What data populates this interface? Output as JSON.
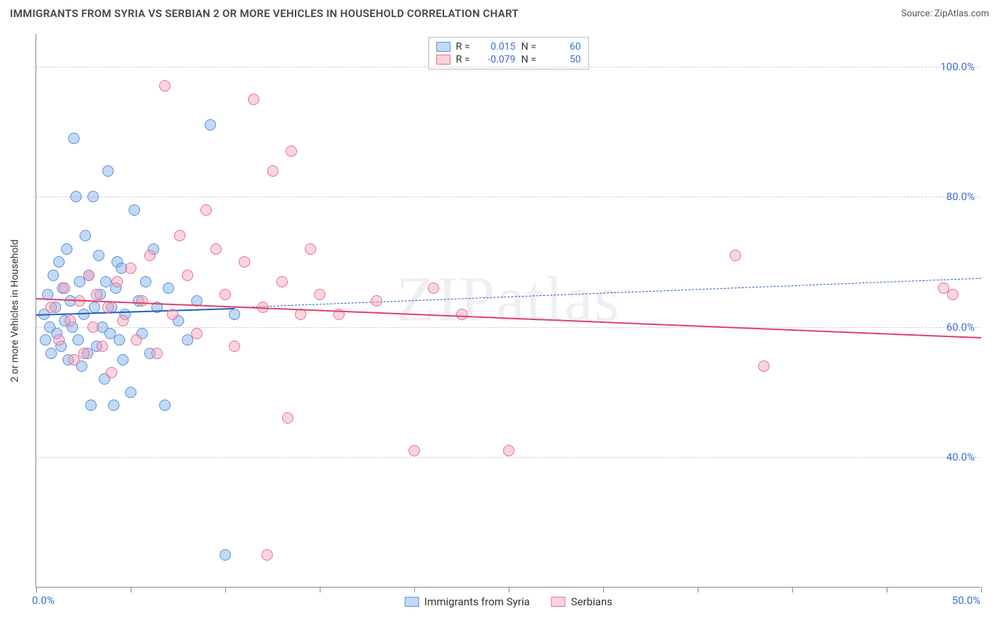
{
  "title": "IMMIGRANTS FROM SYRIA VS SERBIAN 2 OR MORE VEHICLES IN HOUSEHOLD CORRELATION CHART",
  "source": "Source: ZipAtlas.com",
  "watermark": "ZIPatlas",
  "chart": {
    "type": "scatter",
    "background_color": "#ffffff",
    "grid_color": "#d0d0d0",
    "axis_color": "#888888",
    "xlim": [
      0,
      50
    ],
    "ylim": [
      20,
      105
    ],
    "x_min_label": "0.0%",
    "x_max_label": "50.0%",
    "x_ticks": [
      0,
      5,
      10,
      15,
      20,
      25,
      30,
      35,
      40,
      45,
      50
    ],
    "y_gridlines": [
      40,
      60,
      80,
      100
    ],
    "y_tick_labels": [
      "40.0%",
      "60.0%",
      "80.0%",
      "100.0%"
    ],
    "y_axis_label": "2 or more Vehicles in Household",
    "label_color": "#3b6fd6",
    "label_fontsize": 15,
    "point_radius": 8,
    "point_opacity": 0.65,
    "series": [
      {
        "name": "Immigrants from Syria",
        "color_fill": "rgba(120,170,235,0.45)",
        "color_stroke": "#5a8fd6",
        "trend_solid": {
          "x1": 0,
          "y1": 62,
          "x2": 10.5,
          "y2": 63,
          "color": "#1f5fbf",
          "width": 2.5
        },
        "trend_dashed": {
          "x1": 10.5,
          "y1": 63,
          "x2": 50,
          "y2": 67.5,
          "color": "#1f5fbf",
          "width": 1.2
        },
        "R": "0.015",
        "N": "60",
        "points": [
          [
            0.4,
            62
          ],
          [
            0.5,
            58
          ],
          [
            0.6,
            65
          ],
          [
            0.7,
            60
          ],
          [
            0.8,
            56
          ],
          [
            0.9,
            68
          ],
          [
            1.0,
            63
          ],
          [
            1.1,
            59
          ],
          [
            1.2,
            70
          ],
          [
            1.3,
            57
          ],
          [
            1.4,
            66
          ],
          [
            1.5,
            61
          ],
          [
            1.6,
            72
          ],
          [
            1.7,
            55
          ],
          [
            1.8,
            64
          ],
          [
            1.9,
            60
          ],
          [
            2.0,
            89
          ],
          [
            2.1,
            80
          ],
          [
            2.2,
            58
          ],
          [
            2.3,
            67
          ],
          [
            2.4,
            54
          ],
          [
            2.5,
            62
          ],
          [
            2.6,
            74
          ],
          [
            2.7,
            56
          ],
          [
            2.8,
            68
          ],
          [
            2.9,
            48
          ],
          [
            3.0,
            80
          ],
          [
            3.1,
            63
          ],
          [
            3.2,
            57
          ],
          [
            3.3,
            71
          ],
          [
            3.4,
            65
          ],
          [
            3.5,
            60
          ],
          [
            3.6,
            52
          ],
          [
            3.7,
            67
          ],
          [
            3.8,
            84
          ],
          [
            3.9,
            59
          ],
          [
            4.0,
            63
          ],
          [
            4.1,
            48
          ],
          [
            4.2,
            66
          ],
          [
            4.3,
            70
          ],
          [
            4.4,
            58
          ],
          [
            4.5,
            69
          ],
          [
            4.6,
            55
          ],
          [
            4.7,
            62
          ],
          [
            5.0,
            50
          ],
          [
            5.2,
            78
          ],
          [
            5.4,
            64
          ],
          [
            5.6,
            59
          ],
          [
            5.8,
            67
          ],
          [
            6.0,
            56
          ],
          [
            6.2,
            72
          ],
          [
            6.4,
            63
          ],
          [
            6.8,
            48
          ],
          [
            7.0,
            66
          ],
          [
            7.5,
            61
          ],
          [
            8.0,
            58
          ],
          [
            8.5,
            64
          ],
          [
            9.2,
            91
          ],
          [
            10.0,
            25
          ],
          [
            10.5,
            62
          ]
        ]
      },
      {
        "name": "Serbians",
        "color_fill": "rgba(245,160,185,0.45)",
        "color_stroke": "#e66f94",
        "trend_solid": {
          "x1": 0,
          "y1": 64.5,
          "x2": 50,
          "y2": 58.5,
          "color": "#e33d6f",
          "width": 2.5
        },
        "trend_dashed": null,
        "R": "-0.079",
        "N": "50",
        "points": [
          [
            0.8,
            63
          ],
          [
            1.2,
            58
          ],
          [
            1.5,
            66
          ],
          [
            1.8,
            61
          ],
          [
            2.0,
            55
          ],
          [
            2.3,
            64
          ],
          [
            2.5,
            56
          ],
          [
            2.8,
            68
          ],
          [
            3.0,
            60
          ],
          [
            3.2,
            65
          ],
          [
            3.5,
            57
          ],
          [
            3.8,
            63
          ],
          [
            4.0,
            53
          ],
          [
            4.3,
            67
          ],
          [
            4.6,
            61
          ],
          [
            5.0,
            69
          ],
          [
            5.3,
            58
          ],
          [
            5.6,
            64
          ],
          [
            6.0,
            71
          ],
          [
            6.4,
            56
          ],
          [
            6.8,
            97
          ],
          [
            7.2,
            62
          ],
          [
            7.6,
            74
          ],
          [
            8.0,
            68
          ],
          [
            8.5,
            59
          ],
          [
            9.0,
            78
          ],
          [
            9.5,
            72
          ],
          [
            10.0,
            65
          ],
          [
            10.5,
            57
          ],
          [
            11.0,
            70
          ],
          [
            11.5,
            95
          ],
          [
            12.0,
            63
          ],
          [
            12.2,
            25
          ],
          [
            12.5,
            84
          ],
          [
            13.0,
            67
          ],
          [
            13.3,
            46
          ],
          [
            13.5,
            87
          ],
          [
            14.0,
            62
          ],
          [
            14.5,
            72
          ],
          [
            15.0,
            65
          ],
          [
            16.0,
            62
          ],
          [
            18.0,
            64
          ],
          [
            20.0,
            41
          ],
          [
            21.0,
            66
          ],
          [
            22.5,
            62
          ],
          [
            25.0,
            41
          ],
          [
            37.0,
            71
          ],
          [
            38.5,
            54
          ],
          [
            48.0,
            66
          ],
          [
            48.5,
            65
          ]
        ]
      }
    ]
  },
  "legend_top": {
    "R_label": "R =",
    "N_label": "N ="
  },
  "legend_bottom": [
    "Immigrants from Syria",
    "Serbians"
  ]
}
